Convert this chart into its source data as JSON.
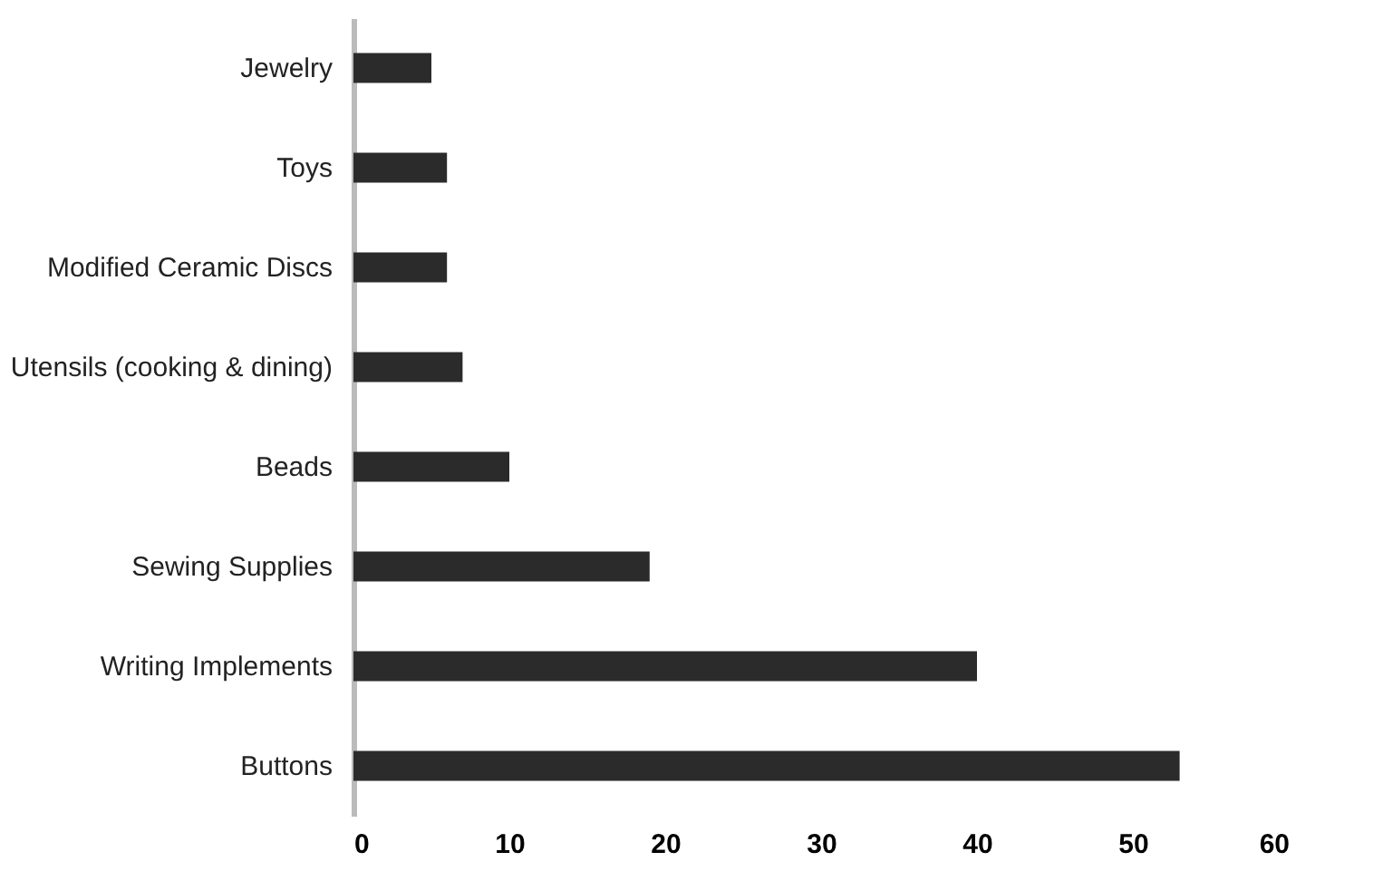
{
  "chart_data": {
    "type": "bar",
    "orientation": "horizontal",
    "categories": [
      "Jewelry",
      "Toys",
      "Modified Ceramic Discs",
      "Utensils (cooking & dining)",
      "Beads",
      "Sewing Supplies",
      "Writing Implements",
      "Buttons"
    ],
    "values": [
      5,
      6,
      6,
      7,
      10,
      19,
      40,
      53
    ],
    "color": "#2b2b2b",
    "xlim": [
      0,
      60
    ],
    "xticks": [
      0,
      10,
      20,
      30,
      40,
      50,
      60
    ],
    "grid": false
  }
}
